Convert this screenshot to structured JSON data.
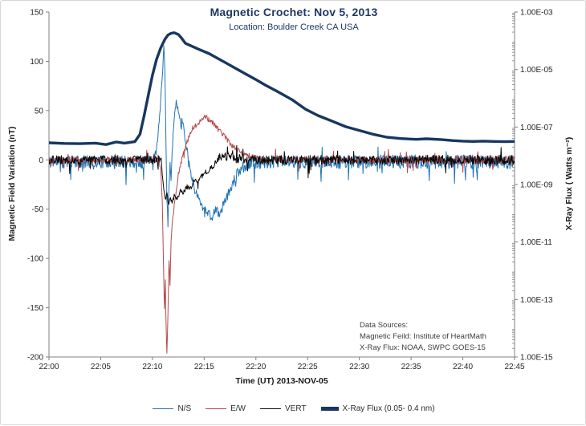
{
  "title": "Magnetic Crochet: Nov 5, 2013",
  "subtitle": "Location: Boulder Creek CA USA",
  "colors": {
    "title_text": "#1f3864",
    "axis_line": "#808080",
    "tick_text": "#262626",
    "ns_line": "#2273b4",
    "ew_line": "#b44a4c",
    "vert_line": "#0a0a0a",
    "xray_line": "#17375e"
  },
  "axes": {
    "x": {
      "label": "Time (UT) 2013-NOV-05",
      "tick_labels": [
        "22:00",
        "22:05",
        "22:10",
        "22:15",
        "22:20",
        "22:25",
        "22:30",
        "22:35",
        "22:40",
        "22:45"
      ],
      "tick_minutes": [
        0,
        5,
        10,
        15,
        20,
        25,
        30,
        35,
        40,
        45
      ],
      "range_minutes": [
        0,
        45
      ]
    },
    "y_left": {
      "label": "Magnetic Field Variation (nT)",
      "tick_values": [
        150,
        100,
        50,
        0,
        -50,
        -100,
        -150,
        -200
      ],
      "range": [
        -200,
        150
      ]
    },
    "y_right": {
      "label": "X-Ray Flux ( Watts m⁻²)",
      "tick_labels": [
        "1.00E-03",
        "1.00E-05",
        "1.00E-07",
        "1.00E-09",
        "1.00E-11",
        "1.00E-13",
        "1.00E-15"
      ],
      "tick_log10": [
        -3,
        -5,
        -7,
        -9,
        -11,
        -13,
        -15
      ],
      "range_log10": [
        -15,
        -3
      ],
      "scale": "log"
    }
  },
  "annotation": {
    "lines": [
      "Data Sources:",
      "Magnetic Feild: Institute of HeartMath",
      "X-Ray Flux: NOAA, SWPC GOES-15"
    ]
  },
  "legend": {
    "position": "bottom-center",
    "items": [
      {
        "label": "N/S",
        "color": "#2273b4",
        "thick": false
      },
      {
        "label": "E/W",
        "color": "#b44a4c",
        "thick": false
      },
      {
        "label": "VERT",
        "color": "#0a0a0a",
        "thick": false
      },
      {
        "label": "X-Ray Flux (0.05- 0.4 nm)",
        "color": "#17375e",
        "thick": true
      }
    ]
  },
  "chart_data": {
    "type": "line",
    "title": "Magnetic Crochet: Nov 5, 2013",
    "subtitle": "Location: Boulder Creek CA USA",
    "x_unit": "minutes after 22:00 UT, 2013-NOV-05",
    "x_range": [
      0,
      45
    ],
    "grid": false,
    "sample_step_minutes": 0.05,
    "series": [
      {
        "name": "N/S",
        "axis": "left",
        "units": "nT",
        "color": "#2273b4",
        "width": 1,
        "seed": 11,
        "waypoints": [
          [
            0,
            -2
          ],
          [
            9.9,
            -2
          ],
          [
            10.2,
            5
          ],
          [
            10.5,
            20
          ],
          [
            10.7,
            45
          ],
          [
            10.85,
            70
          ],
          [
            11.0,
            95
          ],
          [
            11.1,
            113
          ],
          [
            11.18,
            100
          ],
          [
            11.25,
            60
          ],
          [
            11.32,
            10
          ],
          [
            11.4,
            -40
          ],
          [
            11.5,
            -62
          ],
          [
            11.6,
            -30
          ],
          [
            11.7,
            -5
          ],
          [
            11.8,
            -20
          ],
          [
            11.9,
            5
          ],
          [
            12.0,
            25
          ],
          [
            12.15,
            48
          ],
          [
            12.3,
            60
          ],
          [
            12.45,
            52
          ],
          [
            12.6,
            45
          ],
          [
            12.9,
            40
          ],
          [
            13.1,
            25
          ],
          [
            13.3,
            12
          ],
          [
            13.5,
            0
          ],
          [
            13.8,
            -18
          ],
          [
            14.1,
            -30
          ],
          [
            14.5,
            -40
          ],
          [
            14.9,
            -48
          ],
          [
            15.3,
            -52
          ],
          [
            15.7,
            -60
          ],
          [
            16.1,
            -50
          ],
          [
            16.5,
            -55
          ],
          [
            16.9,
            -45
          ],
          [
            17.3,
            -35
          ],
          [
            17.7,
            -26
          ],
          [
            18.1,
            -16
          ],
          [
            18.5,
            -9
          ],
          [
            19.0,
            -5
          ],
          [
            19.6,
            -3
          ],
          [
            20.5,
            -2
          ],
          [
            45,
            -2
          ]
        ],
        "noise_amp": [
          [
            0,
            6.5
          ],
          [
            9.7,
            6.5
          ],
          [
            10.1,
            3
          ],
          [
            12.7,
            3
          ],
          [
            13.2,
            4.5
          ],
          [
            17.5,
            4.5
          ],
          [
            18.5,
            6.5
          ],
          [
            45,
            7.5
          ]
        ],
        "spike_down_prob": 0.03,
        "spike_up_prob": 0.012
      },
      {
        "name": "E/W",
        "axis": "left",
        "units": "nT",
        "color": "#b44a4c",
        "width": 1,
        "seed": 23,
        "waypoints": [
          [
            0,
            0
          ],
          [
            10.6,
            0
          ],
          [
            10.8,
            -10
          ],
          [
            10.95,
            -40
          ],
          [
            11.05,
            -95
          ],
          [
            11.15,
            -150
          ],
          [
            11.25,
            -122
          ],
          [
            11.32,
            -172
          ],
          [
            11.4,
            -196
          ],
          [
            11.5,
            -158
          ],
          [
            11.6,
            -100
          ],
          [
            11.7,
            -128
          ],
          [
            11.8,
            -82
          ],
          [
            11.95,
            -60
          ],
          [
            12.1,
            -46
          ],
          [
            12.3,
            -32
          ],
          [
            12.5,
            -16
          ],
          [
            12.7,
            -6
          ],
          [
            12.9,
            3
          ],
          [
            13.1,
            10
          ],
          [
            13.4,
            20
          ],
          [
            13.7,
            28
          ],
          [
            14.0,
            33
          ],
          [
            14.4,
            37
          ],
          [
            14.8,
            40
          ],
          [
            15.1,
            44
          ],
          [
            15.4,
            41
          ],
          [
            15.8,
            38
          ],
          [
            16.2,
            33
          ],
          [
            16.6,
            28
          ],
          [
            17.0,
            24
          ],
          [
            17.4,
            18
          ],
          [
            17.8,
            13
          ],
          [
            18.4,
            9
          ],
          [
            19.0,
            5
          ],
          [
            19.8,
            2
          ],
          [
            21,
            0
          ],
          [
            45,
            0
          ]
        ],
        "noise_amp": [
          [
            0,
            3.5
          ],
          [
            10.4,
            3.5
          ],
          [
            10.7,
            1.5
          ],
          [
            12.6,
            1.5
          ],
          [
            13.0,
            2.5
          ],
          [
            19,
            2.5
          ],
          [
            20,
            3.5
          ],
          [
            45,
            4
          ]
        ],
        "spike_down_prob": 0.012,
        "spike_up_prob": 0.012
      },
      {
        "name": "VERT",
        "axis": "left",
        "units": "nT",
        "color": "#0a0a0a",
        "width": 1,
        "seed": 37,
        "waypoints": [
          [
            0,
            0
          ],
          [
            10.85,
            0
          ],
          [
            10.95,
            -15
          ],
          [
            11.1,
            -30
          ],
          [
            11.25,
            -42
          ],
          [
            11.4,
            -34
          ],
          [
            11.55,
            -45
          ],
          [
            11.7,
            -38
          ],
          [
            11.9,
            -44
          ],
          [
            12.1,
            -36
          ],
          [
            12.4,
            -40
          ],
          [
            12.7,
            -32
          ],
          [
            13.0,
            -34
          ],
          [
            13.3,
            -27
          ],
          [
            13.7,
            -28
          ],
          [
            14.0,
            -22
          ],
          [
            14.4,
            -22
          ],
          [
            14.8,
            -16
          ],
          [
            15.2,
            -14
          ],
          [
            15.6,
            -9
          ],
          [
            16.0,
            -4
          ],
          [
            16.5,
            2
          ],
          [
            17.0,
            4
          ],
          [
            17.6,
            2
          ],
          [
            18.4,
            1
          ],
          [
            19.5,
            0
          ],
          [
            45,
            0
          ]
        ],
        "noise_amp": [
          [
            0,
            4.5
          ],
          [
            10.6,
            4.5
          ],
          [
            10.9,
            2.5
          ],
          [
            15.5,
            2.5
          ],
          [
            16.5,
            4.5
          ],
          [
            45,
            5
          ]
        ],
        "spike_down_prob": 0.012,
        "spike_up_prob": 0.012
      },
      {
        "name": "X-Ray Flux (0.05- 0.4 nm)",
        "axis": "right",
        "units": "log10 Watts m^-2",
        "color": "#17375e",
        "width": 3.4,
        "seed": 0,
        "log10_points": [
          [
            0,
            -7.55
          ],
          [
            1.5,
            -7.57
          ],
          [
            3,
            -7.58
          ],
          [
            4.5,
            -7.56
          ],
          [
            5.5,
            -7.61
          ],
          [
            6.5,
            -7.52
          ],
          [
            7.3,
            -7.56
          ],
          [
            8.3,
            -7.51
          ],
          [
            8.8,
            -7.25
          ],
          [
            9.2,
            -6.6
          ],
          [
            9.6,
            -5.9
          ],
          [
            10.0,
            -5.2
          ],
          [
            10.4,
            -4.65
          ],
          [
            10.8,
            -4.25
          ],
          [
            11.2,
            -3.95
          ],
          [
            11.5,
            -3.8
          ],
          [
            11.8,
            -3.74
          ],
          [
            12.1,
            -3.72
          ],
          [
            12.5,
            -3.78
          ],
          [
            12.8,
            -3.9
          ],
          [
            13.2,
            -4.09
          ],
          [
            14.5,
            -4.3
          ],
          [
            15.5,
            -4.45
          ],
          [
            17,
            -4.75
          ],
          [
            18.5,
            -5.05
          ],
          [
            20,
            -5.35
          ],
          [
            20.9,
            -5.54
          ],
          [
            22,
            -5.75
          ],
          [
            23.5,
            -6.05
          ],
          [
            24.8,
            -6.38
          ],
          [
            26,
            -6.6
          ],
          [
            27.4,
            -6.8
          ],
          [
            28.7,
            -6.99
          ],
          [
            30,
            -7.12
          ],
          [
            31.3,
            -7.25
          ],
          [
            32.6,
            -7.35
          ],
          [
            34,
            -7.4
          ],
          [
            35.5,
            -7.43
          ],
          [
            36.5,
            -7.41
          ],
          [
            38,
            -7.44
          ],
          [
            39,
            -7.47
          ],
          [
            40,
            -7.49
          ],
          [
            41,
            -7.5
          ],
          [
            42,
            -7.49
          ],
          [
            43,
            -7.5
          ],
          [
            44,
            -7.51
          ],
          [
            45,
            -7.5
          ]
        ]
      }
    ],
    "notes": {
      "flare_peak_flux_watts_m2": 0.00019,
      "flare_peak_time": "~22:12 UT",
      "ew_min_nT": -196,
      "ns_peak_nT": 113,
      "vert_min_nT": -45
    }
  }
}
